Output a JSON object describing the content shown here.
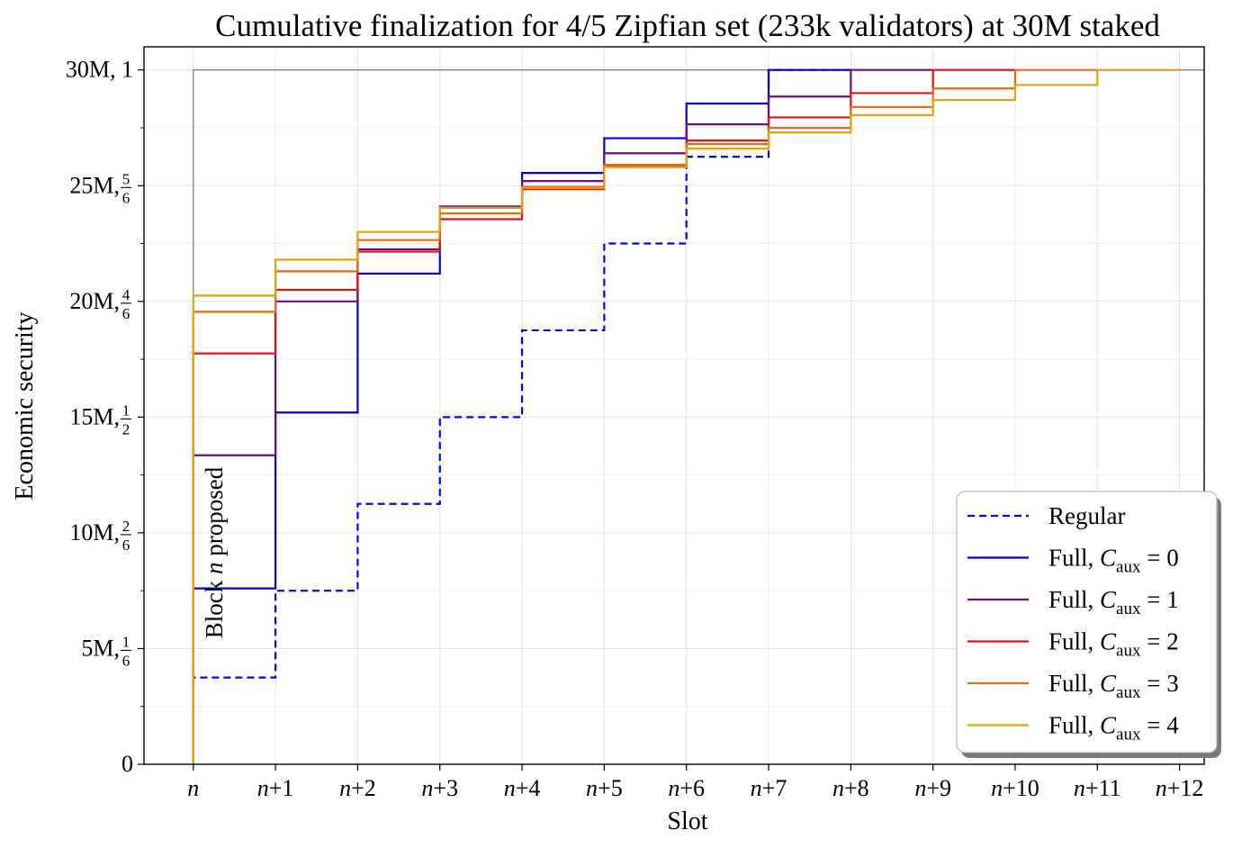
{
  "chart_data": {
    "type": "line",
    "step": "pre",
    "title": "Cumulative finalization for 4/5 Zipfian set (233k validators) at 30M staked",
    "xlabel": "Slot",
    "ylabel": "Economic security",
    "x_ticks": [
      "n",
      "n+1",
      "n+2",
      "n+3",
      "n+4",
      "n+5",
      "n+6",
      "n+7",
      "n+8",
      "n+9",
      "n+10",
      "n+11",
      "n+12"
    ],
    "x_ticks_parts": [
      {
        "i": "n",
        "s": ""
      },
      {
        "i": "n",
        "s": "+1"
      },
      {
        "i": "n",
        "s": "+2"
      },
      {
        "i": "n",
        "s": "+3"
      },
      {
        "i": "n",
        "s": "+4"
      },
      {
        "i": "n",
        "s": "+5"
      },
      {
        "i": "n",
        "s": "+6"
      },
      {
        "i": "n",
        "s": "+7"
      },
      {
        "i": "n",
        "s": "+8"
      },
      {
        "i": "n",
        "s": "+9"
      },
      {
        "i": "n",
        "s": "+10"
      },
      {
        "i": "n",
        "s": "+11"
      },
      {
        "i": "n",
        "s": "+12"
      }
    ],
    "y_ticks": [
      {
        "value": 0,
        "label": "0",
        "frac_num": "",
        "frac_den": ""
      },
      {
        "value": 5,
        "label": "5M, ",
        "frac_num": "1",
        "frac_den": "6"
      },
      {
        "value": 10,
        "label": "10M, ",
        "frac_num": "2",
        "frac_den": "6"
      },
      {
        "value": 15,
        "label": "15M, ",
        "frac_num": "1",
        "frac_den": "2"
      },
      {
        "value": 20,
        "label": "20M, ",
        "frac_num": "4",
        "frac_den": "6"
      },
      {
        "value": 25,
        "label": "25M, ",
        "frac_num": "5",
        "frac_den": "6"
      },
      {
        "value": 30,
        "label": "30M, 1",
        "frac_num": "",
        "frac_den": ""
      }
    ],
    "xlim": [
      -0.6,
      12.3
    ],
    "ylim": [
      0,
      31.0
    ],
    "y_unit": "M",
    "grid": true,
    "legend_position": "lower-right",
    "annotation": {
      "prefix": "Block ",
      "italic": "n",
      "suffix": " proposed"
    },
    "reference_line": {
      "y": 30,
      "from_x": 0,
      "color": "#808080"
    },
    "series": [
      {
        "legend_main": "Regular",
        "legend_sub": "",
        "legend_value": "",
        "color": "#0000ff",
        "dash": true,
        "values": [
          0,
          3.75,
          7.5,
          11.25,
          15.0,
          18.75,
          22.5,
          26.25,
          30.0
        ]
      },
      {
        "legend_main": "Full, ",
        "legend_sub": "aux",
        "legend_value": "0",
        "color": "#0000e0",
        "dash": false,
        "values": [
          0,
          7.6,
          15.2,
          21.2,
          24.05,
          25.55,
          27.05,
          28.55,
          30.0
        ]
      },
      {
        "legend_main": "Full, ",
        "legend_sub": "aux",
        "legend_value": "1",
        "color": "#6a0d83",
        "dash": false,
        "values": [
          0,
          13.35,
          20.0,
          22.25,
          24.1,
          25.2,
          26.4,
          27.65,
          28.85,
          30.0
        ]
      },
      {
        "legend_main": "Full, ",
        "legend_sub": "aux",
        "legend_value": "2",
        "color": "#e8100e",
        "dash": false,
        "values": [
          0,
          17.75,
          20.5,
          22.15,
          23.55,
          24.85,
          25.85,
          26.95,
          27.95,
          29.0,
          30.0
        ]
      },
      {
        "legend_main": "Full, ",
        "legend_sub": "aux",
        "legend_value": "3",
        "color": "#ea6a10",
        "dash": false,
        "values": [
          0,
          19.55,
          21.3,
          22.65,
          23.8,
          24.95,
          25.9,
          26.8,
          27.5,
          28.4,
          29.2,
          30.0
        ]
      },
      {
        "legend_main": "Full, ",
        "legend_sub": "aux",
        "legend_value": "4",
        "color": "#e8a00d",
        "dash": false,
        "values": [
          0,
          20.25,
          21.8,
          23.0,
          24.05,
          24.9,
          25.8,
          26.6,
          27.3,
          28.05,
          28.7,
          29.35,
          30.0
        ]
      }
    ]
  }
}
